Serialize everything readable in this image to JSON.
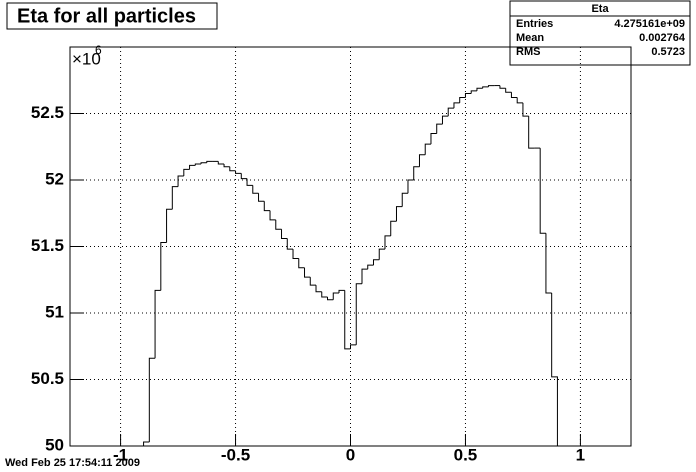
{
  "chart_data": {
    "type": "histogram",
    "title": "Eta for all particles",
    "y_scale_label": "×10",
    "y_scale_exponent": "6",
    "color": "#000000",
    "grid": true,
    "bins": [
      -0.9,
      -0.875,
      -0.85,
      -0.825,
      -0.8,
      -0.775,
      -0.75,
      -0.725,
      -0.7,
      -0.675,
      -0.65,
      -0.625,
      -0.6,
      -0.575,
      -0.55,
      -0.525,
      -0.5,
      -0.475,
      -0.45,
      -0.425,
      -0.4,
      -0.375,
      -0.35,
      -0.325,
      -0.3,
      -0.275,
      -0.25,
      -0.225,
      -0.2,
      -0.175,
      -0.15,
      -0.125,
      -0.1,
      -0.075,
      -0.05,
      -0.025,
      0,
      0.025,
      0.05,
      0.075,
      0.1,
      0.125,
      0.15,
      0.175,
      0.2,
      0.225,
      0.25,
      0.275,
      0.3,
      0.325,
      0.35,
      0.375,
      0.4,
      0.425,
      0.45,
      0.475,
      0.5,
      0.525,
      0.55,
      0.575,
      0.6,
      0.625,
      0.65,
      0.675,
      0.7,
      0.725,
      0.75,
      0.775,
      0.8,
      0.825,
      0.85,
      0.875,
      0.9
    ],
    "counts": [
      50.03,
      50.66,
      51.17,
      51.53,
      51.78,
      51.95,
      52.03,
      52.08,
      52.11,
      52.12,
      52.13,
      52.14,
      52.14,
      52.12,
      52.1,
      52.07,
      52.05,
      52.01,
      51.96,
      51.9,
      51.84,
      51.77,
      51.7,
      51.63,
      51.56,
      51.48,
      51.41,
      51.34,
      51.27,
      51.21,
      51.16,
      51.12,
      51.1,
      51.15,
      51.17,
      50.73,
      50.76,
      51.22,
      51.33,
      51.36,
      51.4,
      51.48,
      51.58,
      51.69,
      51.8,
      51.9,
      52.0,
      52.1,
      52.19,
      52.27,
      52.35,
      52.42,
      52.48,
      52.54,
      52.58,
      52.62,
      52.65,
      52.67,
      52.69,
      52.7,
      52.71,
      52.71,
      52.69,
      52.66,
      52.62,
      52.58,
      52.48,
      52.24,
      52.24,
      51.6,
      51.15,
      50.52
    ],
    "xlim": [
      -1.22,
      1.22
    ],
    "ylim": [
      50,
      53
    ],
    "xticks": [
      -1,
      -0.5,
      0,
      0.5,
      1
    ],
    "yticks": [
      50,
      50.5,
      51,
      51.5,
      52,
      52.5
    ],
    "stats": {
      "title": "Eta",
      "rows": [
        [
          "Entries",
          "4.275161e+09"
        ],
        [
          "Mean",
          "0.002764"
        ],
        [
          "RMS",
          "0.5723"
        ]
      ]
    },
    "timestamp": "Wed Feb 25 17:54:11 2009"
  }
}
